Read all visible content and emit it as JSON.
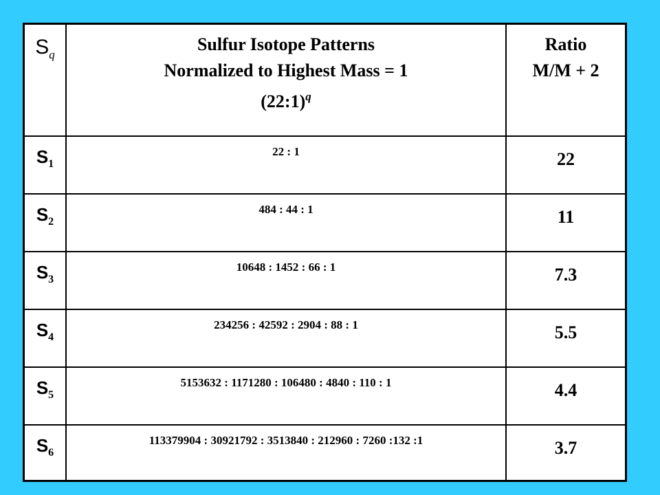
{
  "header": {
    "symbol": {
      "base": "S",
      "sub": "q"
    },
    "pattern_title_line1": "Sulfur Isotope  Patterns",
    "pattern_title_line2": "Normalized  to Highest Mass =  1",
    "pattern_title_line3_base": "(22:1)",
    "pattern_title_line3_sup": "q",
    "ratio_title_line1": "Ratio",
    "ratio_title_line2": "M/M + 2"
  },
  "rows": [
    {
      "base": "S",
      "sub": "1",
      "pattern": "22 : 1",
      "ratio": "22"
    },
    {
      "base": "S",
      "sub": "2",
      "pattern": "484 : 44 : 1",
      "ratio": "11"
    },
    {
      "base": "S",
      "sub": "3",
      "pattern": "10648 : 1452 : 66 : 1",
      "ratio": "7.3"
    },
    {
      "base": "S",
      "sub": "4",
      "pattern": "234256 : 42592 : 2904 : 88 : 1",
      "ratio": "5.5"
    },
    {
      "base": "S",
      "sub": "5",
      "pattern": "5153632 : 1171280 : 106480 : 4840 : 110 : 1",
      "ratio": "4.4"
    },
    {
      "base": "S",
      "sub": "6",
      "pattern": "113379904 : 30921792 : 3513840 : 212960 : 7260 :132 :1",
      "ratio": "3.7"
    }
  ],
  "colors": {
    "background": "#33ccff",
    "header_text": "#cc3399",
    "body_text": "#000000",
    "table_bg": "#ffffff"
  }
}
